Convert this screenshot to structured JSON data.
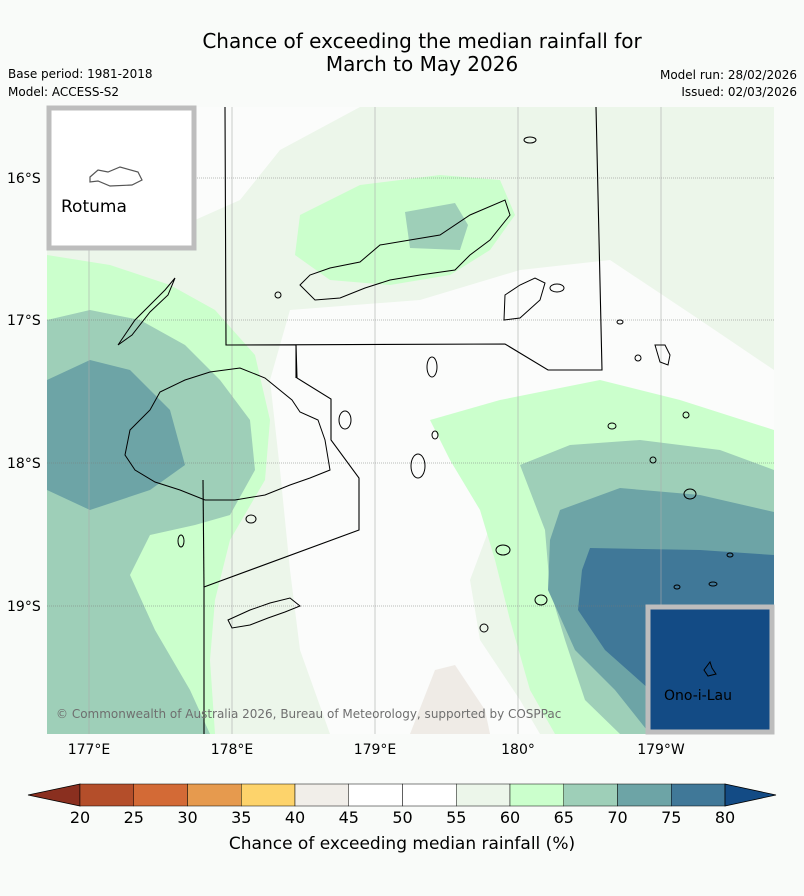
{
  "title": {
    "line1": "Chance of exceeding the median rainfall for",
    "line2": "March to May 2026"
  },
  "meta": {
    "base_period": "Base period: 1981-2018",
    "model": "Model: ACCESS-S2",
    "model_run": "Model run: 28/02/2026",
    "issued": "Issued: 02/03/2026"
  },
  "map": {
    "lat_labels": [
      "16°S",
      "17°S",
      "18°S",
      "19°S"
    ],
    "lon_labels": [
      "177°E",
      "178°E",
      "179°E",
      "180°",
      "179°W"
    ],
    "copyright": "© Commonwealth of Australia 2026, Bureau of Meteorology, supported by COSPPac",
    "insets": [
      {
        "name": "Rotuma"
      },
      {
        "name": "Ono-i-Lau"
      }
    ]
  },
  "legend": {
    "label": "Chance of exceeding median rainfall (%)",
    "ticks": [
      "20",
      "25",
      "30",
      "35",
      "40",
      "45",
      "50",
      "55",
      "60",
      "65",
      "70",
      "75",
      "80"
    ],
    "colors": [
      "#8a2f1f",
      "#b44e2a",
      "#d36a36",
      "#e69a4e",
      "#fdd36b",
      "#f1eee9",
      "#ffffff",
      "#ffffff",
      "#ecf6ea",
      "#cbffcc",
      "#9ecfb8",
      "#6da4a6",
      "#407898",
      "#134b85"
    ]
  }
}
